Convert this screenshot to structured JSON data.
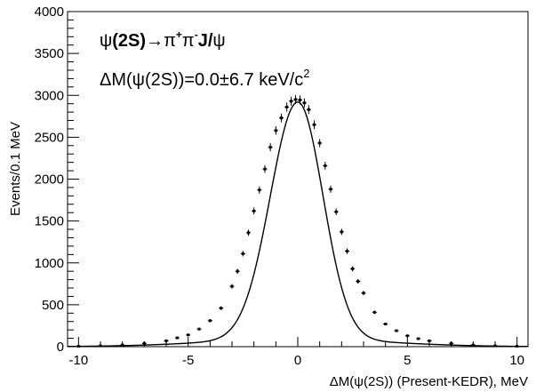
{
  "chart_data": {
    "type": "scatter",
    "xlabel": "ΔM(ψ(2S)) (Present-KEDR), MeV",
    "ylabel": "Events/0.1 MeV",
    "xlim": [
      -10.5,
      10.5
    ],
    "ylim": [
      0,
      4000
    ],
    "x_ticks": [
      -10,
      -5,
      0,
      5,
      10
    ],
    "y_ticks": [
      0,
      500,
      1000,
      1500,
      2000,
      2500,
      3000,
      3500,
      4000
    ],
    "grid": false,
    "legend": "none",
    "annotations": {
      "process": {
        "psi": "ψ",
        "state": "(2S)",
        "arrow": "→",
        "pi1": "π",
        "plus": "+",
        "pi2": "π",
        "minus": "-",
        "jpsi": "J/",
        "psi2": "ψ"
      },
      "shift": {
        "text": "ΔM(ψ(2S))=0.0±6.7 keV/c",
        "sup": "2"
      }
    },
    "fit_curve": {
      "peak_x": 0.0,
      "peak_y": 2920,
      "sigma_left": 1.25,
      "sigma_right": 1.15,
      "tail_amplitude": 90,
      "tail_width": 4.0
    },
    "series": [
      {
        "style": "points-with-errorbars",
        "x": [
          -10,
          -9,
          -8,
          -7,
          -6,
          -5.5,
          -5,
          -4.5,
          -4,
          -3.5,
          -3,
          -2.75,
          -2.5,
          -2.25,
          -2,
          -1.75,
          -1.5,
          -1.25,
          -1,
          -0.75,
          -0.5,
          -0.3,
          -0.1,
          0.1,
          0.3,
          0.5,
          0.75,
          1,
          1.25,
          1.5,
          1.75,
          2,
          2.25,
          2.5,
          2.75,
          3,
          3.5,
          4,
          4.5,
          5,
          5.5,
          6,
          7,
          8,
          9,
          10
        ],
        "y": [
          5,
          10,
          20,
          40,
          70,
          105,
          140,
          210,
          310,
          460,
          720,
          900,
          1110,
          1360,
          1620,
          1870,
          2120,
          2380,
          2580,
          2730,
          2860,
          2930,
          2950,
          2945,
          2910,
          2830,
          2650,
          2430,
          2160,
          1880,
          1610,
          1370,
          1140,
          930,
          780,
          640,
          410,
          270,
          190,
          130,
          95,
          70,
          40,
          20,
          10,
          5
        ]
      }
    ]
  }
}
